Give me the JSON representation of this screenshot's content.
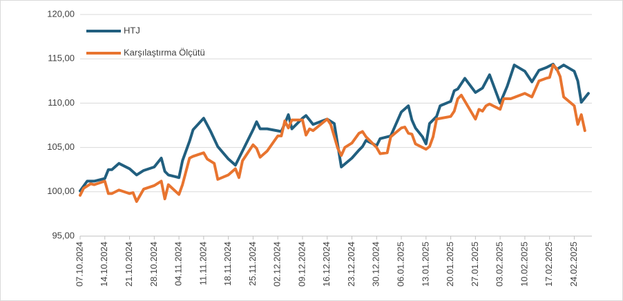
{
  "chart_data": {
    "type": "line",
    "ylim": [
      95,
      120
    ],
    "yticks": [
      {
        "value": 95,
        "label": "95,00"
      },
      {
        "value": 100,
        "label": "100,00"
      },
      {
        "value": 105,
        "label": "105,00"
      },
      {
        "value": 110,
        "label": "110,00"
      },
      {
        "value": 115,
        "label": "115,00"
      },
      {
        "value": 120,
        "label": "120,00"
      }
    ],
    "xlim": [
      "07.10.2024",
      "01.03.2025"
    ],
    "xticks": [
      "07.10.2024",
      "14.10.2024",
      "21.10.2024",
      "28.10.2024",
      "04.11.2024",
      "11.11.2024",
      "18.11.2024",
      "25.11.2024",
      "02.12.2024",
      "09.12.2024",
      "16.12.2024",
      "23.12.2024",
      "30.12.2024",
      "06.01.2025",
      "13.01.2025",
      "20.01.2025",
      "27.01.2025",
      "03.02.2025",
      "10.02.2025",
      "17.02.2025",
      "24.02.2025"
    ],
    "grid": true,
    "legend": "upper left",
    "series": [
      {
        "name": "HTJ",
        "color": "#215f7f",
        "x": [
          "07.10.2024",
          "09.10.2024",
          "11.10.2024",
          "14.10.2024",
          "15.10.2024",
          "16.10.2024",
          "18.10.2024",
          "21.10.2024",
          "23.10.2024",
          "25.10.2024",
          "28.10.2024",
          "30.10.2024",
          "31.10.2024",
          "01.11.2024",
          "04.11.2024",
          "05.11.2024",
          "07.11.2024",
          "08.11.2024",
          "11.11.2024",
          "13.11.2024",
          "15.11.2024",
          "18.11.2024",
          "20.11.2024",
          "22.11.2024",
          "25.11.2024",
          "26.11.2024",
          "27.11.2024",
          "29.11.2024",
          "03.12.2024",
          "04.12.2024",
          "05.12.2024",
          "06.12.2024",
          "09.12.2024",
          "10.12.2024",
          "11.12.2024",
          "12.12.2024",
          "16.12.2024",
          "18.12.2024",
          "20.12.2024",
          "23.12.2024",
          "25.12.2024",
          "26.12.2024",
          "27.12.2024",
          "30.12.2024",
          "31.12.2024",
          "03.01.2025",
          "06.01.2025",
          "08.01.2025",
          "09.01.2025",
          "10.01.2025",
          "12.01.2025",
          "13.01.2025",
          "14.01.2025",
          "16.01.2025",
          "17.01.2025",
          "20.01.2025",
          "21.01.2025",
          "22.01.2025",
          "24.01.2025",
          "27.01.2025",
          "29.01.2025",
          "31.01.2025",
          "03.02.2025",
          "05.02.2025",
          "07.02.2025",
          "10.02.2025",
          "11.02.2025",
          "12.02.2025",
          "14.02.2025",
          "16.02.2025",
          "18.02.2025",
          "19.02.2025",
          "21.02.2025",
          "24.02.2025",
          "25.02.2025",
          "26.02.2025",
          "28.02.2025"
        ],
        "values": [
          100.1,
          101.2,
          101.2,
          101.5,
          102.5,
          102.5,
          103.2,
          102.6,
          101.9,
          102.4,
          102.8,
          103.8,
          102.3,
          101.9,
          101.6,
          103.5,
          105.7,
          107.0,
          108.3,
          106.8,
          105.1,
          103.7,
          103.0,
          104.6,
          107.0,
          107.9,
          107.1,
          107.1,
          106.8,
          107.7,
          108.7,
          107.1,
          108.3,
          108.6,
          108.1,
          107.6,
          108.2,
          107.7,
          102.8,
          103.8,
          104.7,
          105.1,
          105.8,
          105.2,
          106.0,
          106.3,
          109.0,
          109.7,
          108.1,
          107.2,
          106.2,
          105.4,
          107.7,
          108.5,
          109.7,
          110.2,
          111.4,
          111.6,
          112.8,
          111.2,
          111.7,
          113.2,
          110.0,
          111.9,
          114.3,
          113.6,
          113.0,
          112.4,
          113.7,
          114.0,
          114.4,
          113.8,
          114.3,
          113.6,
          112.5,
          110.1,
          111.1
        ]
      },
      {
        "name": "Karşılaştırma Ölçütü",
        "color": "#e8742f",
        "x": [
          "07.10.2024",
          "08.10.2024",
          "10.10.2024",
          "11.10.2024",
          "14.10.2024",
          "15.10.2024",
          "16.10.2024",
          "18.10.2024",
          "21.10.2024",
          "22.10.2024",
          "23.10.2024",
          "25.10.2024",
          "28.10.2024",
          "30.10.2024",
          "31.10.2024",
          "01.11.2024",
          "04.11.2024",
          "05.11.2024",
          "07.11.2024",
          "08.11.2024",
          "11.11.2024",
          "12.11.2024",
          "14.11.2024",
          "15.11.2024",
          "18.11.2024",
          "20.11.2024",
          "21.11.2024",
          "22.11.2024",
          "25.11.2024",
          "26.11.2024",
          "27.11.2024",
          "29.11.2024",
          "02.12.2024",
          "03.12.2024",
          "04.12.2024",
          "05.12.2024",
          "06.12.2024",
          "09.12.2024",
          "10.12.2024",
          "11.12.2024",
          "12.12.2024",
          "16.12.2024",
          "17.12.2024",
          "19.12.2024",
          "20.12.2024",
          "21.12.2024",
          "23.12.2024",
          "25.12.2024",
          "26.12.2024",
          "27.12.2024",
          "30.12.2024",
          "31.12.2024",
          "02.01.2025",
          "03.01.2025",
          "06.01.2025",
          "07.01.2025",
          "08.01.2025",
          "09.01.2025",
          "10.01.2025",
          "13.01.2025",
          "14.01.2025",
          "15.01.2025",
          "16.01.2025",
          "20.01.2025",
          "21.01.2025",
          "22.01.2025",
          "23.01.2025",
          "27.01.2025",
          "28.01.2025",
          "29.01.2025",
          "30.01.2025",
          "31.01.2025",
          "03.02.2025",
          "04.02.2025",
          "06.02.2025",
          "10.02.2025",
          "12.02.2025",
          "14.02.2025",
          "16.02.2025",
          "17.02.2025",
          "18.02.2025",
          "19.02.2025",
          "20.02.2025",
          "21.02.2025",
          "24.02.2025",
          "25.02.2025",
          "26.02.2025",
          "27.02.2025"
        ],
        "values": [
          99.6,
          100.4,
          100.9,
          100.8,
          101.2,
          99.8,
          99.8,
          100.2,
          99.8,
          99.9,
          98.9,
          100.3,
          100.7,
          101.2,
          99.2,
          100.8,
          99.7,
          100.8,
          103.8,
          104.0,
          104.4,
          103.7,
          103.2,
          101.4,
          101.9,
          102.6,
          101.6,
          103.5,
          105.3,
          104.9,
          103.9,
          104.6,
          106.3,
          106.3,
          108.0,
          107.2,
          108.1,
          108.1,
          106.4,
          107.1,
          106.9,
          108.2,
          107.6,
          104.9,
          104.1,
          105.0,
          105.5,
          106.6,
          106.8,
          106.2,
          105.0,
          104.3,
          104.4,
          106.2,
          107.2,
          107.3,
          106.6,
          106.5,
          105.4,
          104.8,
          105.1,
          106.2,
          108.2,
          108.5,
          109.1,
          110.5,
          110.9,
          108.2,
          109.3,
          109.1,
          109.7,
          109.9,
          109.3,
          110.5,
          110.5,
          111.1,
          110.7,
          112.5,
          112.8,
          112.9,
          114.3,
          113.9,
          113.0,
          110.7,
          109.7,
          107.6,
          108.7,
          106.9
        ]
      }
    ]
  }
}
